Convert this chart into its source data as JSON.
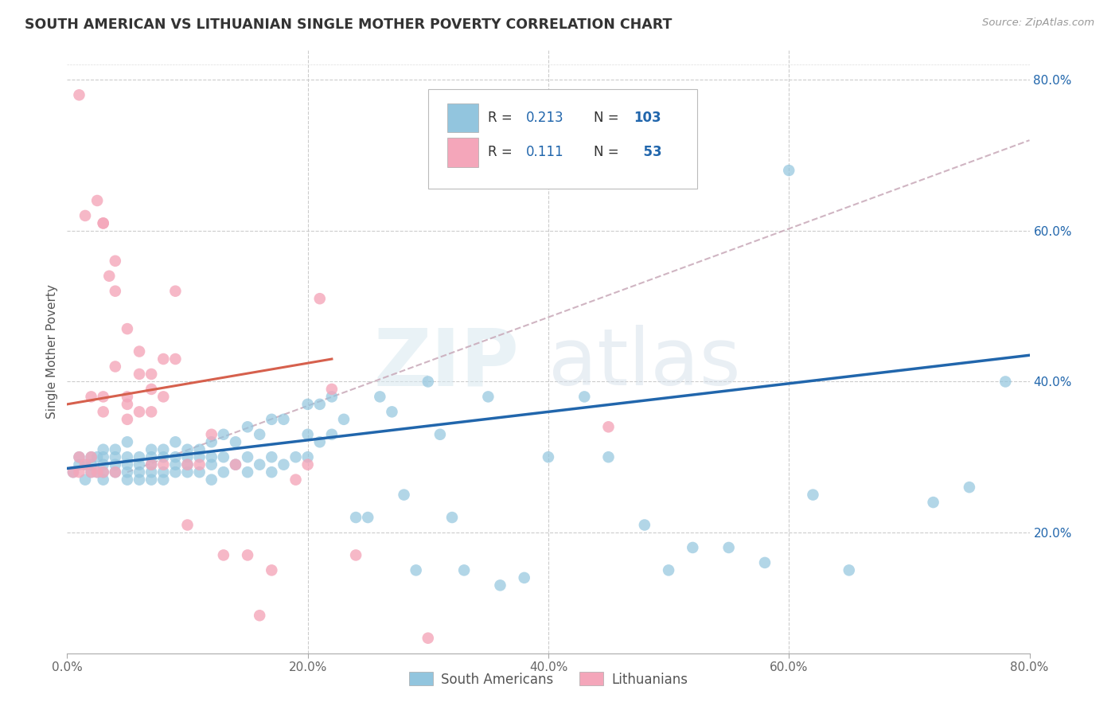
{
  "title": "SOUTH AMERICAN VS LITHUANIAN SINGLE MOTHER POVERTY CORRELATION CHART",
  "source": "Source: ZipAtlas.com",
  "ylabel": "Single Mother Poverty",
  "xlim": [
    0,
    0.8
  ],
  "ylim": [
    0.04,
    0.84
  ],
  "xticks": [
    0.0,
    0.2,
    0.4,
    0.6,
    0.8
  ],
  "yticks": [
    0.2,
    0.4,
    0.6,
    0.8
  ],
  "ytick_labels_right": [
    "20.0%",
    "40.0%",
    "60.0%",
    "80.0%"
  ],
  "xtick_labels": [
    "0.0%",
    "20.0%",
    "40.0%",
    "60.0%",
    "80.0%"
  ],
  "blue_color": "#92c5de",
  "pink_color": "#f4a6ba",
  "blue_line_color": "#2166ac",
  "pink_line_color": "#d6604d",
  "dashed_line_color": "#c8a8b8",
  "R_blue": 0.213,
  "N_blue": 103,
  "R_pink": 0.111,
  "N_pink": 53,
  "watermark_zip": "ZIP",
  "watermark_atlas": "atlas",
  "legend_south_americans": "South Americans",
  "legend_lithuanians": "Lithuanians",
  "blue_scatter_x": [
    0.005,
    0.01,
    0.01,
    0.015,
    0.015,
    0.02,
    0.02,
    0.02,
    0.025,
    0.025,
    0.03,
    0.03,
    0.03,
    0.03,
    0.03,
    0.04,
    0.04,
    0.04,
    0.04,
    0.05,
    0.05,
    0.05,
    0.05,
    0.05,
    0.06,
    0.06,
    0.06,
    0.06,
    0.07,
    0.07,
    0.07,
    0.07,
    0.07,
    0.08,
    0.08,
    0.08,
    0.08,
    0.09,
    0.09,
    0.09,
    0.09,
    0.1,
    0.1,
    0.1,
    0.1,
    0.11,
    0.11,
    0.11,
    0.12,
    0.12,
    0.12,
    0.12,
    0.13,
    0.13,
    0.13,
    0.14,
    0.14,
    0.15,
    0.15,
    0.15,
    0.16,
    0.16,
    0.17,
    0.17,
    0.17,
    0.18,
    0.18,
    0.19,
    0.2,
    0.2,
    0.2,
    0.21,
    0.21,
    0.22,
    0.22,
    0.23,
    0.24,
    0.25,
    0.26,
    0.27,
    0.28,
    0.29,
    0.3,
    0.31,
    0.32,
    0.33,
    0.35,
    0.36,
    0.38,
    0.4,
    0.43,
    0.45,
    0.48,
    0.5,
    0.52,
    0.55,
    0.58,
    0.6,
    0.62,
    0.65,
    0.72,
    0.75,
    0.78
  ],
  "blue_scatter_y": [
    0.28,
    0.29,
    0.3,
    0.27,
    0.29,
    0.28,
    0.3,
    0.29,
    0.28,
    0.3,
    0.27,
    0.28,
    0.29,
    0.3,
    0.31,
    0.28,
    0.29,
    0.3,
    0.31,
    0.27,
    0.28,
    0.29,
    0.3,
    0.32,
    0.27,
    0.28,
    0.29,
    0.3,
    0.27,
    0.28,
    0.29,
    0.3,
    0.31,
    0.27,
    0.28,
    0.3,
    0.31,
    0.28,
    0.29,
    0.3,
    0.32,
    0.28,
    0.29,
    0.3,
    0.31,
    0.28,
    0.3,
    0.31,
    0.27,
    0.29,
    0.3,
    0.32,
    0.28,
    0.3,
    0.33,
    0.29,
    0.32,
    0.28,
    0.3,
    0.34,
    0.29,
    0.33,
    0.28,
    0.3,
    0.35,
    0.29,
    0.35,
    0.3,
    0.3,
    0.33,
    0.37,
    0.32,
    0.37,
    0.33,
    0.38,
    0.35,
    0.22,
    0.22,
    0.38,
    0.36,
    0.25,
    0.15,
    0.4,
    0.33,
    0.22,
    0.15,
    0.38,
    0.13,
    0.14,
    0.3,
    0.38,
    0.3,
    0.21,
    0.15,
    0.18,
    0.18,
    0.16,
    0.68,
    0.25,
    0.15,
    0.24,
    0.26,
    0.4
  ],
  "pink_scatter_x": [
    0.005,
    0.01,
    0.01,
    0.01,
    0.015,
    0.015,
    0.02,
    0.02,
    0.02,
    0.025,
    0.025,
    0.03,
    0.03,
    0.03,
    0.03,
    0.03,
    0.035,
    0.04,
    0.04,
    0.04,
    0.04,
    0.05,
    0.05,
    0.05,
    0.05,
    0.06,
    0.06,
    0.06,
    0.07,
    0.07,
    0.07,
    0.07,
    0.08,
    0.08,
    0.08,
    0.09,
    0.09,
    0.1,
    0.1,
    0.11,
    0.12,
    0.13,
    0.14,
    0.15,
    0.16,
    0.17,
    0.19,
    0.2,
    0.21,
    0.22,
    0.24,
    0.3,
    0.45
  ],
  "pink_scatter_y": [
    0.28,
    0.28,
    0.3,
    0.78,
    0.29,
    0.62,
    0.28,
    0.3,
    0.38,
    0.28,
    0.64,
    0.28,
    0.61,
    0.61,
    0.38,
    0.36,
    0.54,
    0.28,
    0.56,
    0.52,
    0.42,
    0.35,
    0.37,
    0.47,
    0.38,
    0.44,
    0.41,
    0.36,
    0.41,
    0.39,
    0.36,
    0.29,
    0.43,
    0.38,
    0.29,
    0.52,
    0.43,
    0.29,
    0.21,
    0.29,
    0.33,
    0.17,
    0.29,
    0.17,
    0.09,
    0.15,
    0.27,
    0.29,
    0.51,
    0.39,
    0.17,
    0.06,
    0.34
  ],
  "blue_regline_x": [
    0.0,
    0.8
  ],
  "blue_regline_y": [
    0.285,
    0.435
  ],
  "pink_regline_x": [
    0.0,
    0.22
  ],
  "pink_regline_y": [
    0.37,
    0.43
  ],
  "dashed_line_x": [
    0.05,
    0.8
  ],
  "dashed_line_y": [
    0.28,
    0.72
  ]
}
